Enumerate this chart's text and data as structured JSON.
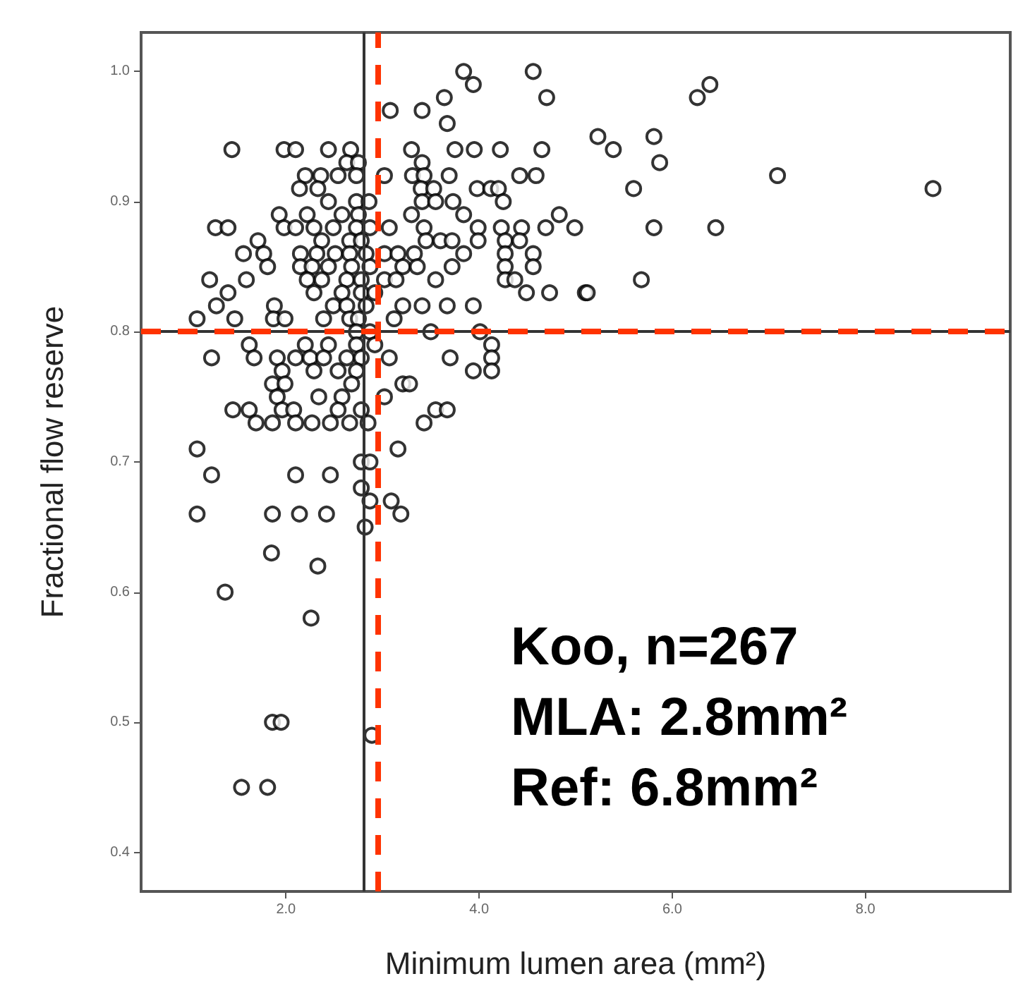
{
  "chart_data": {
    "type": "scatter",
    "xlabel": "Minimum lumen area (mm²)",
    "ylabel": "Fractional flow reserve",
    "xlim": [
      0.5,
      9.5
    ],
    "ylim": [
      0.37,
      1.03
    ],
    "xticks": [
      {
        "value": 2,
        "label": "2.0"
      },
      {
        "value": 4,
        "label": "4.0"
      },
      {
        "value": 6,
        "label": "6.0"
      },
      {
        "value": 8,
        "label": "8.0"
      }
    ],
    "yticks": [
      {
        "value": 0.4,
        "label": "0.4"
      },
      {
        "value": 0.5,
        "label": "0.5"
      },
      {
        "value": 0.6,
        "label": "0.6"
      },
      {
        "value": 0.7,
        "label": "0.7"
      },
      {
        "value": 0.8,
        "label": "0.8"
      },
      {
        "value": 0.9,
        "label": "0.9"
      },
      {
        "value": 1.0,
        "label": "1.0"
      }
    ],
    "grid": false,
    "marker": "circle",
    "series": [
      {
        "color": "#000000",
        "x": [
          3.84,
          4.56,
          3.94,
          3.64,
          4.7,
          3.08,
          3.41,
          3.67,
          1.44,
          1.98,
          2.1,
          2.44,
          2.67,
          3.3,
          3.75,
          3.95,
          4.22,
          4.65,
          2.63,
          2.75,
          3.41,
          2.2,
          2.36,
          2.54,
          2.73,
          3.02,
          3.31,
          3.43,
          3.69,
          4.42,
          4.59,
          2.14,
          2.33,
          3.4,
          3.53,
          3.98,
          4.12,
          4.2,
          2.44,
          2.73,
          2.86,
          3.41,
          3.55,
          3.73,
          4.25,
          1.93,
          2.22,
          2.58,
          2.75,
          3.3,
          3.84,
          4.83,
          1.27,
          1.4,
          1.98,
          2.1,
          2.29,
          2.49,
          2.73,
          2.87,
          3.07,
          3.43,
          3.99,
          4.23,
          4.44,
          4.69,
          4.99,
          1.71,
          2.37,
          2.66,
          2.78,
          3.45,
          3.6,
          3.72,
          3.99,
          4.27,
          4.42,
          1.56,
          1.77,
          2.15,
          2.32,
          2.51,
          2.66,
          2.83,
          3.02,
          3.16,
          3.33,
          3.84,
          4.27,
          4.56,
          1.81,
          2.15,
          2.27,
          2.44,
          2.68,
          2.87,
          3.21,
          3.36,
          3.72,
          4.27,
          4.56,
          1.21,
          1.59,
          2.22,
          2.37,
          2.63,
          2.78,
          3.02,
          3.14,
          3.55,
          4.27,
          4.37,
          1.4,
          2.29,
          2.58,
          2.78,
          2.92,
          4.49,
          4.73,
          5.1,
          1.28,
          1.88,
          2.49,
          2.63,
          2.83,
          3.21,
          3.41,
          3.67,
          3.94,
          1.08,
          1.47,
          1.87,
          1.99,
          2.39,
          2.66,
          2.75,
          3.12,
          2.73,
          2.87,
          3.5,
          4.01,
          1.62,
          2.2,
          2.44,
          2.73,
          2.92,
          4.13,
          1.23,
          1.67,
          1.91,
          2.1,
          2.25,
          2.39,
          2.63,
          2.78,
          3.07,
          3.7,
          4.13,
          1.96,
          2.29,
          2.54,
          2.73,
          3.94,
          4.13,
          1.86,
          1.99,
          2.68,
          3.21,
          3.28,
          1.91,
          2.34,
          2.58,
          3.02,
          1.45,
          1.62,
          1.96,
          2.08,
          2.54,
          2.78,
          3.55,
          3.67,
          1.69,
          1.86,
          2.1,
          2.27,
          2.46,
          2.66,
          2.85,
          3.43,
          1.08,
          3.16,
          2.78,
          2.87,
          6.26,
          6.39,
          5.23,
          5.81,
          5.39,
          5.87,
          5.6,
          8.7,
          5.81,
          6.45,
          5.12,
          5.68,
          7.09,
          1.23,
          2.1,
          2.46,
          1.08,
          1.86,
          2.14,
          2.42,
          3.19,
          2.78,
          2.87,
          3.09,
          2.82,
          1.85,
          2.33,
          1.37,
          2.26,
          1.86,
          1.95,
          2.89,
          1.54,
          1.81
        ],
        "values": [
          1.0,
          1.0,
          0.99,
          0.98,
          0.98,
          0.97,
          0.97,
          0.96,
          0.94,
          0.94,
          0.94,
          0.94,
          0.94,
          0.94,
          0.94,
          0.94,
          0.94,
          0.94,
          0.93,
          0.93,
          0.93,
          0.92,
          0.92,
          0.92,
          0.92,
          0.92,
          0.92,
          0.92,
          0.92,
          0.92,
          0.92,
          0.91,
          0.91,
          0.91,
          0.91,
          0.91,
          0.91,
          0.91,
          0.9,
          0.9,
          0.9,
          0.9,
          0.9,
          0.9,
          0.9,
          0.89,
          0.89,
          0.89,
          0.89,
          0.89,
          0.89,
          0.89,
          0.88,
          0.88,
          0.88,
          0.88,
          0.88,
          0.88,
          0.88,
          0.88,
          0.88,
          0.88,
          0.88,
          0.88,
          0.88,
          0.88,
          0.88,
          0.87,
          0.87,
          0.87,
          0.87,
          0.87,
          0.87,
          0.87,
          0.87,
          0.87,
          0.87,
          0.86,
          0.86,
          0.86,
          0.86,
          0.86,
          0.86,
          0.86,
          0.86,
          0.86,
          0.86,
          0.86,
          0.86,
          0.86,
          0.85,
          0.85,
          0.85,
          0.85,
          0.85,
          0.85,
          0.85,
          0.85,
          0.85,
          0.85,
          0.85,
          0.84,
          0.84,
          0.84,
          0.84,
          0.84,
          0.84,
          0.84,
          0.84,
          0.84,
          0.84,
          0.84,
          0.83,
          0.83,
          0.83,
          0.83,
          0.83,
          0.83,
          0.83,
          0.83,
          0.82,
          0.82,
          0.82,
          0.82,
          0.82,
          0.82,
          0.82,
          0.82,
          0.82,
          0.81,
          0.81,
          0.81,
          0.81,
          0.81,
          0.81,
          0.81,
          0.81,
          0.8,
          0.8,
          0.8,
          0.8,
          0.79,
          0.79,
          0.79,
          0.79,
          0.79,
          0.79,
          0.78,
          0.78,
          0.78,
          0.78,
          0.78,
          0.78,
          0.78,
          0.78,
          0.78,
          0.78,
          0.78,
          0.77,
          0.77,
          0.77,
          0.77,
          0.77,
          0.77,
          0.76,
          0.76,
          0.76,
          0.76,
          0.76,
          0.75,
          0.75,
          0.75,
          0.75,
          0.74,
          0.74,
          0.74,
          0.74,
          0.74,
          0.74,
          0.74,
          0.74,
          0.73,
          0.73,
          0.73,
          0.73,
          0.73,
          0.73,
          0.73,
          0.73,
          0.71,
          0.71,
          0.7,
          0.7,
          0.98,
          0.99,
          0.95,
          0.95,
          0.94,
          0.93,
          0.91,
          0.91,
          0.88,
          0.88,
          0.83,
          0.84,
          0.92,
          0.69,
          0.69,
          0.69,
          0.66,
          0.66,
          0.66,
          0.66,
          0.66,
          0.68,
          0.67,
          0.67,
          0.65,
          0.63,
          0.62,
          0.6,
          0.58,
          0.5,
          0.5,
          0.49,
          0.45,
          0.45
        ]
      }
    ],
    "ref_lines": [
      {
        "axis": "x",
        "value": 2.8,
        "color": "#333333",
        "line_style": "solid"
      },
      {
        "axis": "y",
        "value": 0.8,
        "color": "#333333",
        "line_style": "solid"
      },
      {
        "axis": "x",
        "value": 2.95,
        "color": "#ff3300",
        "line_style": "dashed"
      },
      {
        "axis": "y",
        "value": 0.8,
        "color": "#ff3300",
        "line_style": "dashed"
      }
    ],
    "annotations": [
      "Koo, n=267",
      "MLA: 2.8mm²",
      "Ref: 6.8mm²"
    ]
  }
}
